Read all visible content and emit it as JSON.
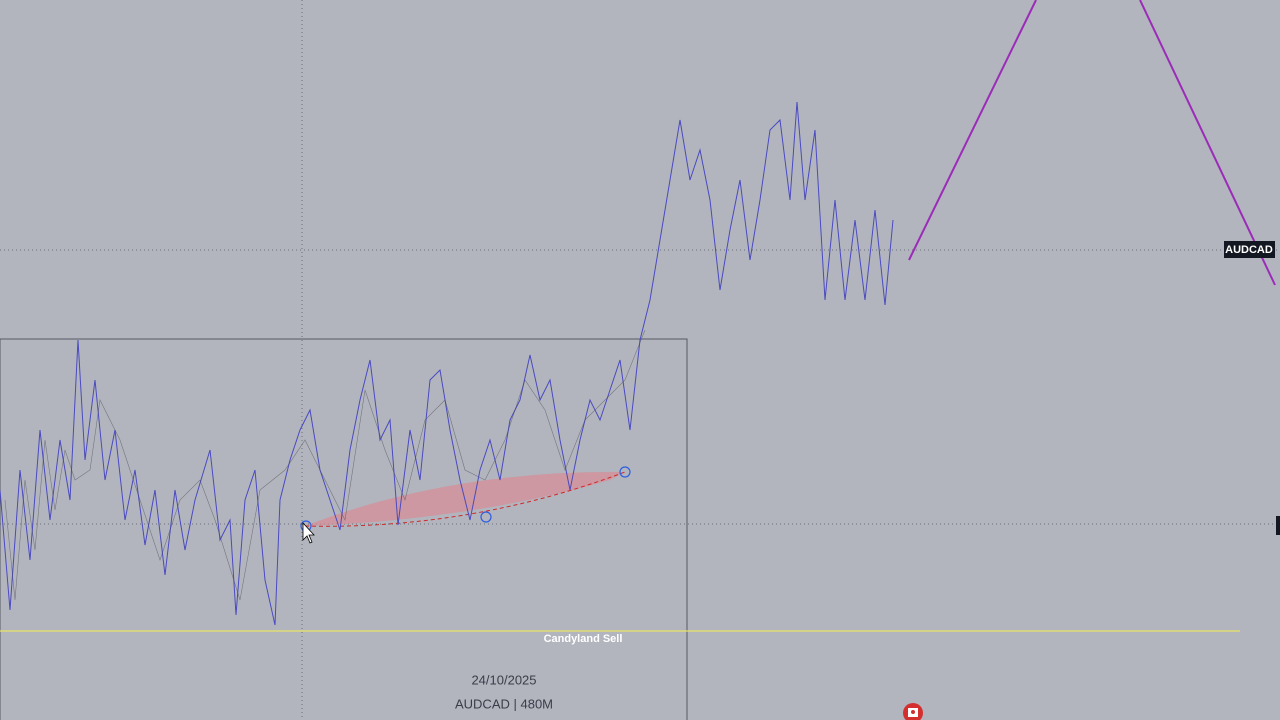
{
  "chart": {
    "symbol_tag": "AUDCAD",
    "annotation": "Candyland Sell",
    "date": "24/10/2025",
    "info": "AUDCAD | 480M"
  }
}
